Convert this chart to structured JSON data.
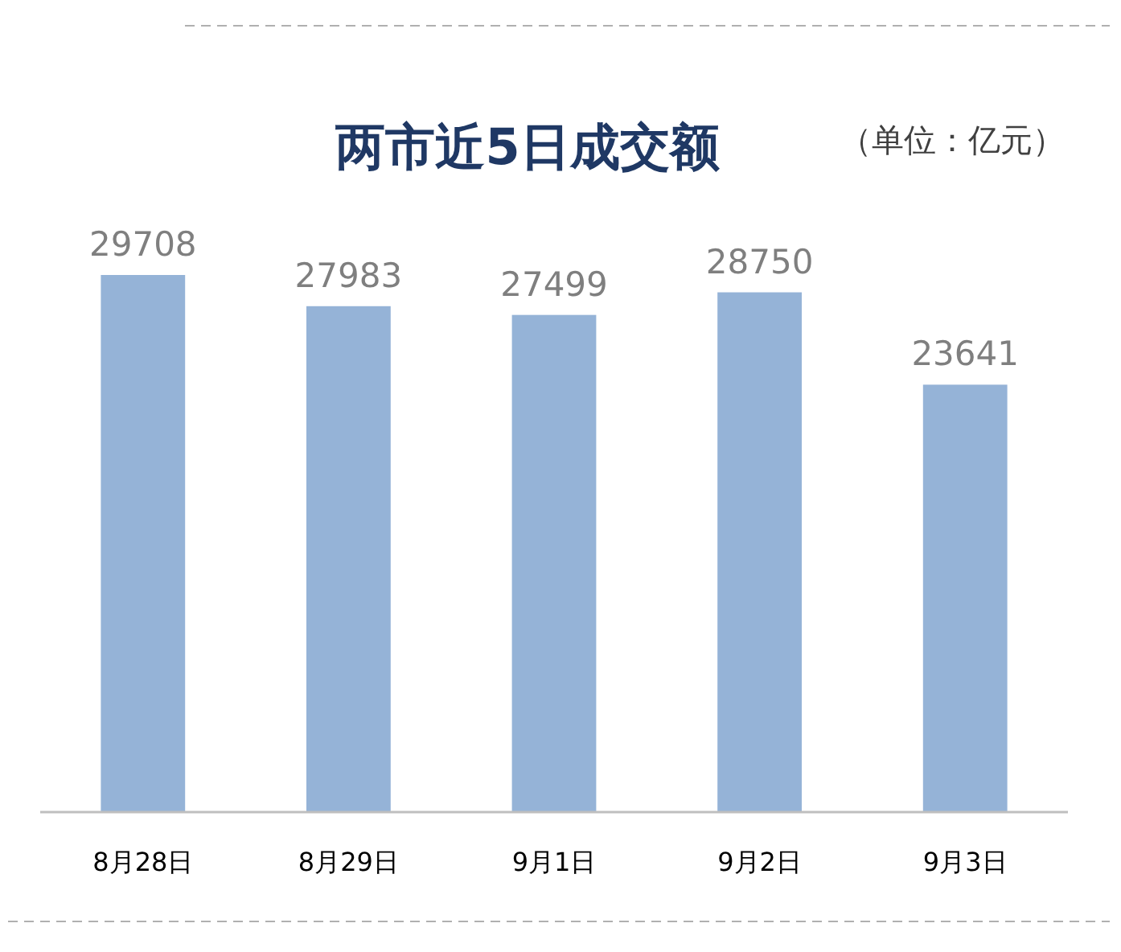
{
  "chart_data": {
    "type": "bar",
    "title": "两市近5日成交额",
    "subtitle": "（单位：亿元）",
    "categories": [
      "8月28日",
      "8月29日",
      "9月1日",
      "9月2日",
      "9月3日"
    ],
    "values": [
      29708,
      27983,
      27499,
      28750,
      23641
    ],
    "color": "#95b3d7",
    "data_labels": true
  }
}
